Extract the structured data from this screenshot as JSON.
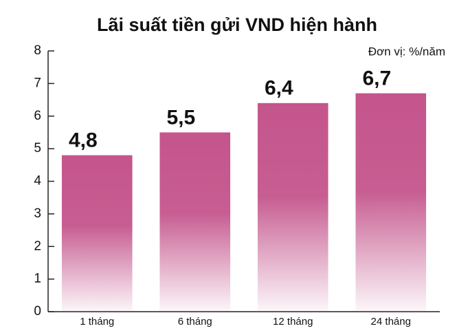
{
  "chart_data": {
    "type": "bar",
    "title": "Lãi suất tiền gửi VND hiện hành",
    "annotation": "Đơn vị: %/năm",
    "categories": [
      "1 tháng",
      "6 tháng",
      "12 tháng",
      "24 tháng"
    ],
    "values": [
      4.8,
      5.5,
      6.4,
      6.7
    ],
    "value_labels": [
      "4,8",
      "5,5",
      "6,4",
      "6,7"
    ],
    "color": "#c4558c",
    "ylim": [
      0,
      8
    ],
    "yticks": [
      0,
      1,
      2,
      3,
      4,
      5,
      6,
      7,
      8
    ],
    "grid": false
  }
}
